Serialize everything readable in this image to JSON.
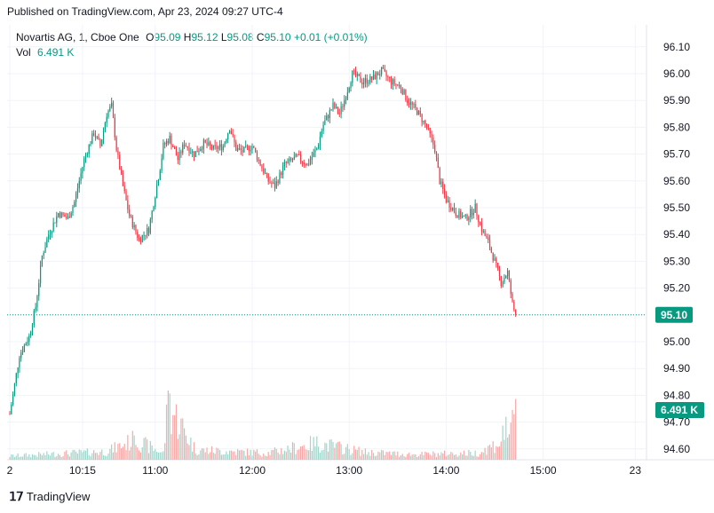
{
  "header": {
    "published": "Published on TradingView.com, Apr 23, 2024 09:27 UTC-4"
  },
  "legend": {
    "symbol": "Novartis AG, 1, Cboe One",
    "open_label": "O",
    "open": "95.09",
    "high_label": "H",
    "high": "95.12",
    "low_label": "L",
    "low": "95.08",
    "close_label": "C",
    "close": "95.10",
    "change": "+0.01 (+0.01%)",
    "vol_label": "Vol",
    "vol": "6.491 K"
  },
  "footer": {
    "logo_text": "TradingView"
  },
  "colors": {
    "up": "#089981",
    "down": "#f23645",
    "up_vol": "#9fd6cb",
    "down_vol": "#f7a9a7",
    "grid": "#f0f3fa"
  },
  "chart_data": {
    "type": "candlestick",
    "timeframe": "1",
    "y_tick_labels": [
      "96.10",
      "96.00",
      "95.90",
      "95.80",
      "95.70",
      "95.60",
      "95.50",
      "95.40",
      "95.30",
      "95.20",
      "95.10",
      "95.00",
      "94.90",
      "94.80",
      "94.70",
      "94.60"
    ],
    "ylim": [
      94.57,
      96.13
    ],
    "x_tick_labels": [
      "2",
      "10:15",
      "11:00",
      "12:00",
      "13:00",
      "14:00",
      "15:00",
      "23"
    ],
    "x_tick_minutes": [
      0,
      45,
      90,
      150,
      210,
      270,
      330,
      387
    ],
    "last_price": "95.10",
    "last_volume": "6.491 K",
    "price_path": [
      [
        0,
        94.73
      ],
      [
        6,
        94.95
      ],
      [
        12,
        95.02
      ],
      [
        16,
        95.13
      ],
      [
        20,
        95.32
      ],
      [
        24,
        95.4
      ],
      [
        30,
        95.48
      ],
      [
        36,
        95.46
      ],
      [
        40,
        95.52
      ],
      [
        46,
        95.68
      ],
      [
        52,
        95.78
      ],
      [
        56,
        95.73
      ],
      [
        60,
        95.85
      ],
      [
        63,
        95.88
      ],
      [
        66,
        95.72
      ],
      [
        70,
        95.58
      ],
      [
        74,
        95.47
      ],
      [
        80,
        95.38
      ],
      [
        86,
        95.42
      ],
      [
        90,
        95.55
      ],
      [
        93,
        95.65
      ],
      [
        95,
        95.73
      ],
      [
        99,
        95.76
      ],
      [
        104,
        95.68
      ],
      [
        108,
        95.74
      ],
      [
        114,
        95.7
      ],
      [
        120,
        95.74
      ],
      [
        126,
        95.72
      ],
      [
        132,
        95.73
      ],
      [
        136,
        95.8
      ],
      [
        140,
        95.72
      ],
      [
        144,
        95.71
      ],
      [
        150,
        95.73
      ],
      [
        156,
        95.65
      ],
      [
        160,
        95.6
      ],
      [
        164,
        95.58
      ],
      [
        170,
        95.66
      ],
      [
        178,
        95.69
      ],
      [
        184,
        95.66
      ],
      [
        190,
        95.72
      ],
      [
        194,
        95.81
      ],
      [
        200,
        95.88
      ],
      [
        204,
        95.85
      ],
      [
        208,
        95.92
      ],
      [
        212,
        96.0
      ],
      [
        218,
        95.97
      ],
      [
        224,
        95.98
      ],
      [
        230,
        96.01
      ],
      [
        236,
        95.97
      ],
      [
        242,
        95.95
      ],
      [
        246,
        95.9
      ],
      [
        252,
        95.86
      ],
      [
        258,
        95.8
      ],
      [
        263,
        95.72
      ],
      [
        266,
        95.6
      ],
      [
        270,
        95.53
      ],
      [
        276,
        95.48
      ],
      [
        282,
        95.46
      ],
      [
        288,
        95.5
      ],
      [
        292,
        95.42
      ],
      [
        296,
        95.37
      ],
      [
        300,
        95.3
      ],
      [
        304,
        95.22
      ],
      [
        308,
        95.26
      ],
      [
        311,
        95.14
      ],
      [
        313,
        95.1
      ]
    ],
    "volume_path": [
      [
        0,
        0.5
      ],
      [
        30,
        0.8
      ],
      [
        60,
        1.1
      ],
      [
        77,
        2.6
      ],
      [
        95,
        0.9
      ],
      [
        98,
        7.4
      ],
      [
        115,
        1.3
      ],
      [
        160,
        0.9
      ],
      [
        180,
        1.8
      ],
      [
        190,
        2.2
      ],
      [
        220,
        1.0
      ],
      [
        250,
        0.7
      ],
      [
        290,
        0.9
      ],
      [
        304,
        2.4
      ],
      [
        307,
        4.6
      ],
      [
        310,
        3.2
      ],
      [
        313,
        6.491
      ]
    ],
    "volume_unit": "K"
  }
}
